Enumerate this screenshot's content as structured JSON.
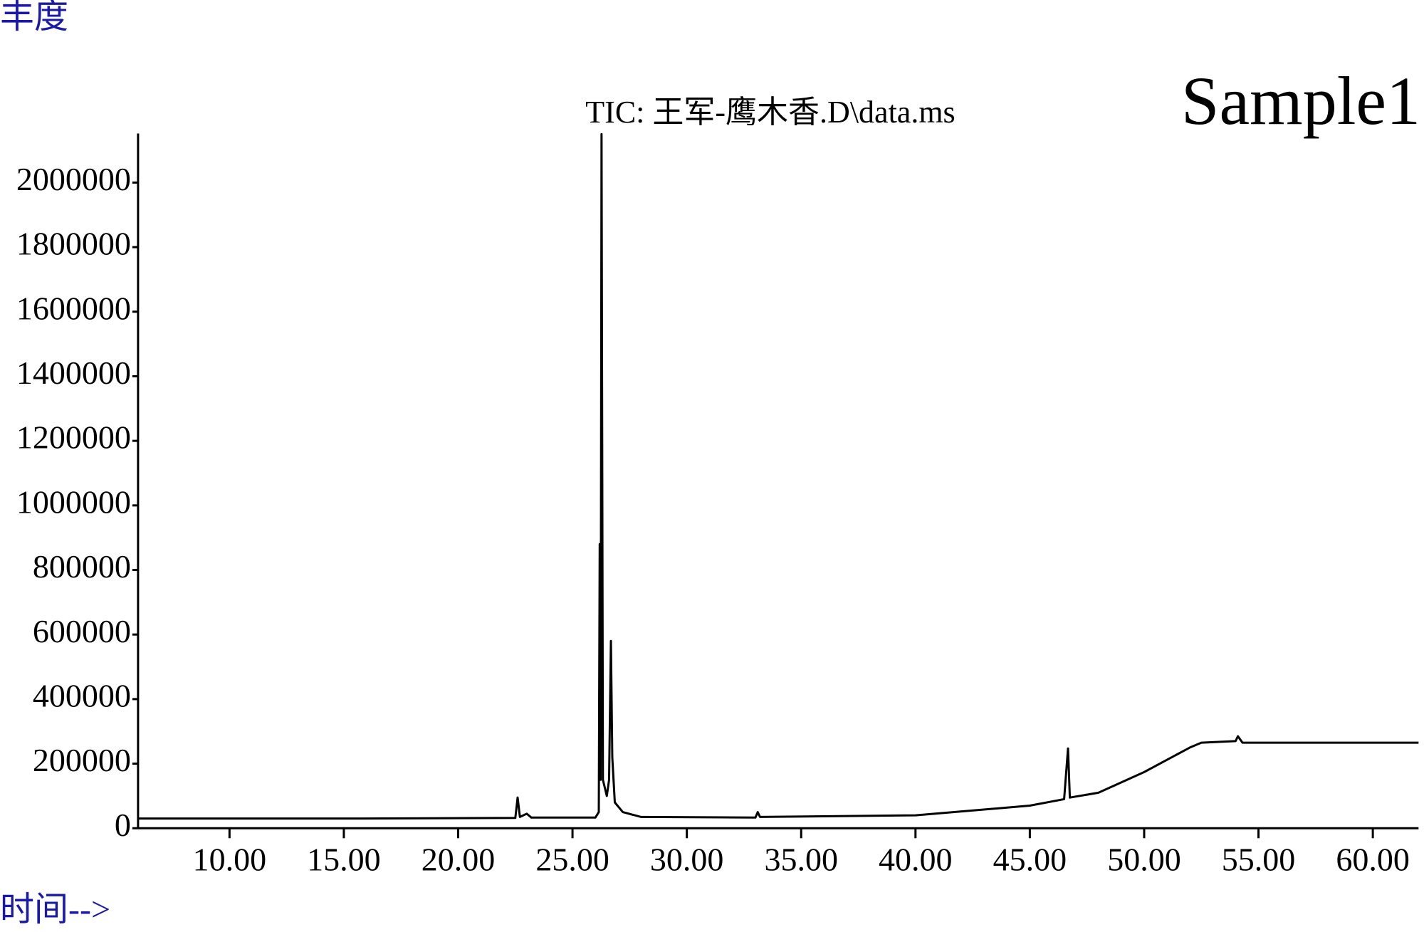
{
  "chart_data": {
    "type": "line",
    "title": "TIC: 王军-鹰木香.D\\data.ms",
    "annotation": "Sample1",
    "y_label": "丰度",
    "x_label": "时间-->",
    "xlim": [
      6,
      62
    ],
    "ylim": [
      0,
      2152000
    ],
    "xticks": [
      {
        "value": 10,
        "label": "10.00"
      },
      {
        "value": 15,
        "label": "15.00"
      },
      {
        "value": 20,
        "label": "20.00"
      },
      {
        "value": 25,
        "label": "25.00"
      },
      {
        "value": 30,
        "label": "30.00"
      },
      {
        "value": 35,
        "label": "35.00"
      },
      {
        "value": 40,
        "label": "40.00"
      },
      {
        "value": 45,
        "label": "45.00"
      },
      {
        "value": 50,
        "label": "50.00"
      },
      {
        "value": 55,
        "label": "55.00"
      },
      {
        "value": 60,
        "label": "60.00"
      }
    ],
    "yticks": [
      0,
      200000,
      400000,
      600000,
      800000,
      1000000,
      1200000,
      1400000,
      1600000,
      1800000,
      2000000
    ],
    "x": [
      6,
      8,
      15,
      22.5,
      22.6,
      22.7,
      23,
      23.2,
      26,
      26.15,
      26.19,
      26.23,
      26.27,
      26.33,
      26.5,
      26.6,
      26.68,
      26.74,
      26.85,
      27.2,
      28,
      33,
      33.1,
      33.2,
      40,
      45,
      46.5,
      46.67,
      46.75,
      48,
      50,
      52,
      52.5,
      54,
      54.1,
      54.3,
      62
    ],
    "series": [
      {
        "name": "TIC",
        "color": "#000000",
        "values": [
          30000,
          30000,
          30000,
          32000,
          95000,
          35000,
          45000,
          33000,
          33000,
          50000,
          880000,
          150000,
          2150000,
          150000,
          100000,
          150000,
          580000,
          220000,
          80000,
          50000,
          35000,
          33000,
          50000,
          35000,
          40000,
          70000,
          90000,
          247000,
          95000,
          110000,
          174000,
          250000,
          265000,
          270000,
          285000,
          265000,
          265000
        ]
      }
    ]
  }
}
